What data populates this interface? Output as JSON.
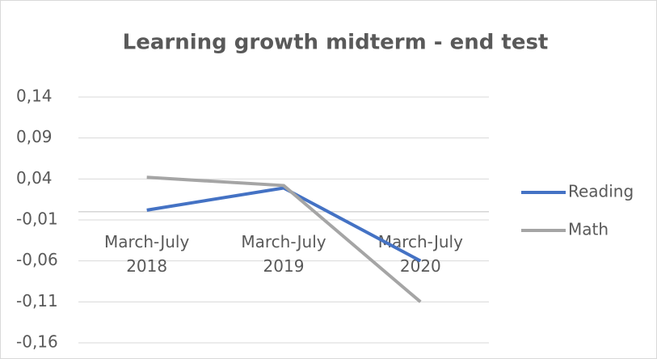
{
  "chart_data": {
    "type": "line",
    "title": "Learning growth midterm - end test",
    "categories": [
      "March-July 2018",
      "March-July 2019",
      "March-July 2020"
    ],
    "series": [
      {
        "name": "Reading",
        "color": "#4472c4",
        "values": [
          0.002,
          0.029,
          -0.06
        ]
      },
      {
        "name": "Math",
        "color": "#a5a5a5",
        "values": [
          0.042,
          0.032,
          -0.11
        ]
      }
    ],
    "ylim": [
      -0.16,
      0.14
    ],
    "yticks": [
      {
        "value": -0.16,
        "label": "-0,16"
      },
      {
        "value": -0.11,
        "label": "-0,11"
      },
      {
        "value": -0.06,
        "label": "-0,06"
      },
      {
        "value": -0.01,
        "label": "-0,01"
      },
      {
        "value": 0.04,
        "label": "0,04"
      },
      {
        "value": 0.09,
        "label": "0,09"
      },
      {
        "value": 0.14,
        "label": "0,14"
      }
    ],
    "grid": true,
    "legend": "right"
  }
}
